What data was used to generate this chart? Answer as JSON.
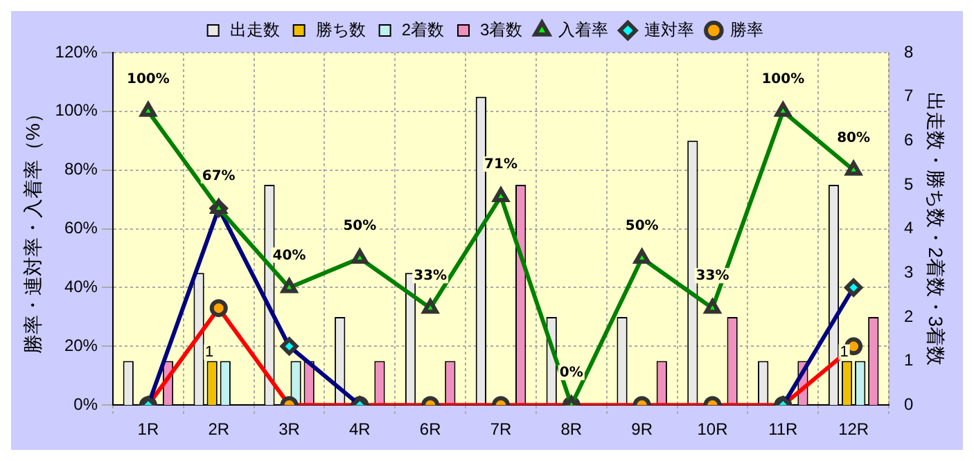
{
  "chart_data": {
    "type": "bar",
    "ylabel": "勝率・連対率・入着率（%）",
    "y2label": "出走数・勝ち数・2着数・3着数",
    "categories": [
      "1R",
      "2R",
      "3R",
      "4R",
      "6R",
      "7R",
      "8R",
      "9R",
      "10R",
      "11R",
      "12R"
    ],
    "series": [
      {
        "name": "出走数",
        "axis": "y2",
        "color": "#e8e8e8",
        "values": [
          1,
          3,
          5,
          2,
          3,
          7,
          2,
          2,
          6,
          1,
          5
        ]
      },
      {
        "name": "勝ち数",
        "axis": "y2",
        "color": "#f0c000",
        "values": [
          0,
          1,
          0,
          0,
          0,
          0,
          0,
          0,
          0,
          0,
          1
        ],
        "value_labels": [
          null,
          "1",
          null,
          null,
          null,
          null,
          null,
          null,
          null,
          null,
          "1"
        ]
      },
      {
        "name": "2着数",
        "axis": "y2",
        "color": "#c0f0f0",
        "values": [
          0,
          1,
          1,
          0,
          0,
          0,
          0,
          0,
          0,
          0,
          1
        ]
      },
      {
        "name": "3着数",
        "axis": "y2",
        "color": "#f090c0",
        "values": [
          1,
          0,
          1,
          1,
          1,
          5,
          0,
          1,
          2,
          1,
          2
        ]
      },
      {
        "name": "入着率",
        "type": "line",
        "color": "#008000",
        "marker": "triangle",
        "values": [
          100,
          67,
          40,
          50,
          33,
          71,
          0,
          50,
          33,
          100,
          80
        ],
        "value_labels": [
          "100%",
          "67%",
          "40%",
          "50%",
          "33%",
          "71%",
          "0%",
          "50%",
          "33%",
          "100%",
          "80%"
        ]
      },
      {
        "name": "連対率",
        "type": "line",
        "color": "#000080",
        "marker": "diamond",
        "values": [
          0,
          67,
          20,
          0,
          null,
          null,
          null,
          null,
          null,
          0,
          40
        ]
      },
      {
        "name": "勝率",
        "type": "line",
        "color": "#ff0000",
        "marker": "circle",
        "values": [
          0,
          33,
          0,
          0,
          0,
          0,
          0,
          0,
          0,
          0,
          20
        ]
      }
    ],
    "ylim": [
      0,
      120
    ],
    "yticks": [
      {
        "value": 0,
        "label": "0%"
      },
      {
        "value": 20,
        "label": "20%"
      },
      {
        "value": 40,
        "label": "40%"
      },
      {
        "value": 60,
        "label": "60%"
      },
      {
        "value": 80,
        "label": "80%"
      },
      {
        "value": 100,
        "label": "100%"
      },
      {
        "value": 120,
        "label": "120%"
      }
    ],
    "y2lim": [
      0,
      8
    ],
    "y2ticks": [
      0,
      1,
      2,
      3,
      4,
      5,
      6,
      7,
      8
    ],
    "grid": true,
    "legend": "top"
  }
}
